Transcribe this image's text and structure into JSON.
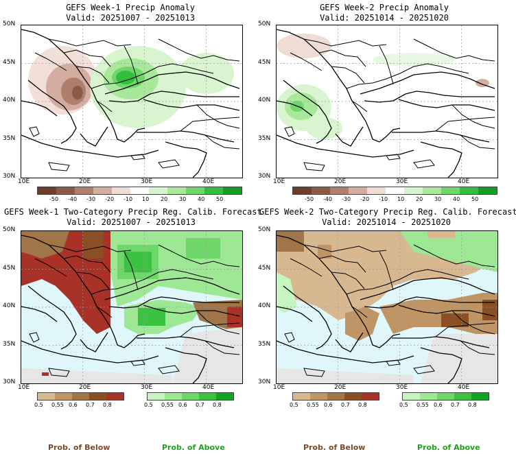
{
  "chart_data": [
    {
      "type": "heatmap",
      "title": "GEFS Week-1 Precip Anomaly",
      "subtitle": "Valid: 20251007 - 20251013",
      "xlabel": "",
      "ylabel": "",
      "x_ticks": [
        "10E",
        "20E",
        "30E",
        "40E"
      ],
      "y_ticks": [
        "30N",
        "35N",
        "40N",
        "45N",
        "50N"
      ],
      "xlim": [
        10,
        44
      ],
      "ylim": [
        30,
        50
      ],
      "colorbar_labels": [
        "-50",
        "-40",
        "-30",
        "-20",
        "-10",
        "10",
        "20",
        "30",
        "40",
        "50"
      ],
      "colorbar_colors": [
        "#6e3f2c",
        "#8c5a45",
        "#b07f6b",
        "#d3aea0",
        "#efdcd4",
        "#ffffff",
        "#d8f5d0",
        "#a8e89a",
        "#6fd66a",
        "#33bf3d",
        "#129e23"
      ]
    },
    {
      "type": "heatmap",
      "title": "GEFS Week-2 Precip Anomaly",
      "subtitle": "Valid: 20251014 - 20251020",
      "xlabel": "",
      "ylabel": "",
      "x_ticks": [
        "10E",
        "20E",
        "30E",
        "40E"
      ],
      "y_ticks": [
        "30N",
        "35N",
        "40N",
        "45N",
        "50N"
      ],
      "xlim": [
        10,
        44
      ],
      "ylim": [
        30,
        50
      ],
      "colorbar_labels": [
        "-50",
        "-40",
        "-30",
        "-20",
        "-10",
        "10",
        "20",
        "30",
        "40",
        "50"
      ],
      "colorbar_colors": [
        "#6e3f2c",
        "#8c5a45",
        "#b07f6b",
        "#d3aea0",
        "#efdcd4",
        "#ffffff",
        "#d8f5d0",
        "#a8e89a",
        "#6fd66a",
        "#33bf3d",
        "#129e23"
      ]
    },
    {
      "type": "heatmap",
      "title": "GEFS Week-1 Two-Category Precip Reg. Calib. Forecast",
      "subtitle": "Valid: 20251007 - 20251013",
      "x_ticks": [
        "10E",
        "20E",
        "30E",
        "40E"
      ],
      "y_ticks": [
        "30N",
        "35N",
        "40N",
        "45N",
        "50N"
      ],
      "xlim": [
        10,
        44
      ],
      "ylim": [
        30,
        50
      ],
      "below_labels": [
        "0.5",
        "0.55",
        "0.6",
        "0.7",
        "0.8"
      ],
      "above_labels": [
        "0.5",
        "0.55",
        "0.6",
        "0.7",
        "0.8"
      ],
      "below_colors": [
        "#d8b890",
        "#bf9566",
        "#a0754a",
        "#8a4f25",
        "#a83228"
      ],
      "above_colors": [
        "#c6f5bf",
        "#9ee895",
        "#6fd66a",
        "#3cc241",
        "#11a322"
      ]
    },
    {
      "type": "heatmap",
      "title": "GEFS Week-2 Two-Category Precip Reg. Calib. Forecast",
      "subtitle": "Valid: 20251014 - 20251020",
      "x_ticks": [
        "10E",
        "20E",
        "30E",
        "40E"
      ],
      "y_ticks": [
        "30N",
        "35N",
        "40N",
        "45N",
        "50N"
      ],
      "xlim": [
        10,
        44
      ],
      "ylim": [
        30,
        50
      ],
      "below_labels": [
        "0.5",
        "0.55",
        "0.6",
        "0.7",
        "0.8"
      ],
      "above_labels": [
        "0.5",
        "0.55",
        "0.6",
        "0.7",
        "0.8"
      ],
      "below_colors": [
        "#d8b890",
        "#bf9566",
        "#a0754a",
        "#8a4f25",
        "#a83228"
      ],
      "above_colors": [
        "#c6f5bf",
        "#9ee895",
        "#6fd66a",
        "#3cc241",
        "#11a322"
      ]
    }
  ],
  "legend": {
    "below_label": "Prob. of Below",
    "above_label": "Prob. of Above",
    "below_color": "#7a4a2a",
    "above_color": "#1fa31f"
  },
  "colors": {
    "sea": "#dff7fb",
    "land_neutral": "#ffffff",
    "land_gray": "#e6e6e6"
  }
}
